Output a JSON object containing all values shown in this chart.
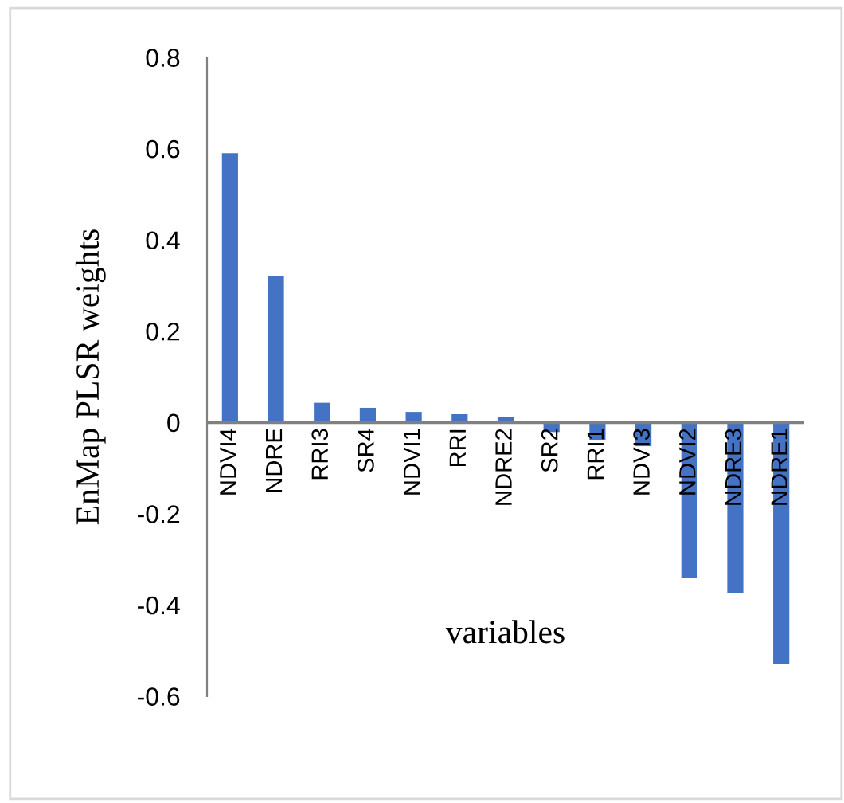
{
  "chart_data": {
    "type": "bar",
    "xlabel": "variables",
    "ylabel": "EnMap PLSR weights",
    "categories": [
      "NDVI4",
      "NDRE",
      "RRI3",
      "SR4",
      "NDVI1",
      "RRI",
      "NDRE2",
      "SR2",
      "RRI1",
      "NDVI3",
      "NDVI2",
      "NDRE3",
      "NDRE1"
    ],
    "values": [
      0.59,
      0.32,
      0.043,
      0.032,
      0.023,
      0.018,
      0.012,
      -0.021,
      -0.038,
      -0.052,
      -0.34,
      -0.375,
      -0.53
    ],
    "color": "#4472c4",
    "ylim": [
      -0.6,
      0.8
    ],
    "yticks": [
      -0.6,
      -0.4,
      -0.2,
      0,
      0.2,
      0.4,
      0.6,
      0.8
    ],
    "grid": false,
    "legend": false
  }
}
